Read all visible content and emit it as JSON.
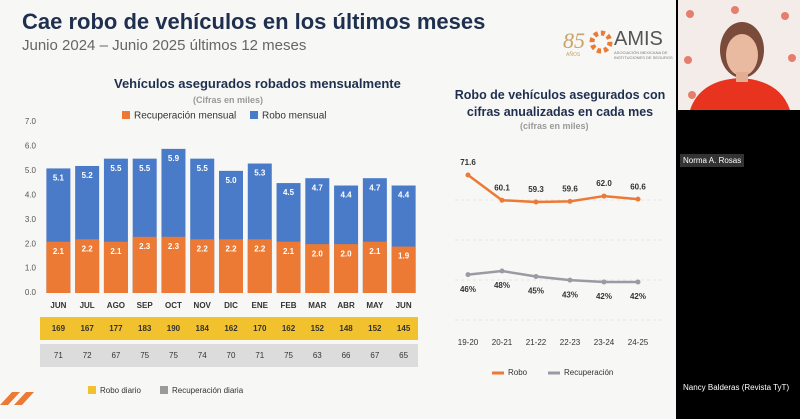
{
  "slide": {
    "title": "Cae robo de vehículos en los últimos meses",
    "subtitle": "Junio 2024 – Junio 2025 últimos 12 meses"
  },
  "logo": {
    "number": "85",
    "years": "AÑOS",
    "name": "AMIS",
    "org": "ASOCIACIÓN MEXICANA DE INSTITUCIONES DE SEGUROS"
  },
  "participants": [
    "Norma A. Rosas",
    "Nancy Balderas (Revista TyT)"
  ],
  "chart_data": [
    {
      "type": "bar",
      "title": "Vehículos asegurados robados mensualmente",
      "subtitle": "(Cifras en miles)",
      "categories": [
        "JUN",
        "JUL",
        "AGO",
        "SEP",
        "OCT",
        "NOV",
        "DIC",
        "ENE",
        "FEB",
        "MAR",
        "ABR",
        "MAY",
        "JUN"
      ],
      "series": [
        {
          "name": "Recuperación mensual",
          "color": "#ec7a35",
          "values": [
            2.1,
            2.2,
            2.1,
            2.3,
            2.3,
            2.2,
            2.2,
            2.2,
            2.1,
            2.0,
            2.0,
            2.1,
            1.9
          ],
          "value_labels": [
            "2.1",
            "2.2",
            "2.1",
            "2.3",
            "2.3",
            "2.2",
            "2.2",
            "2.2",
            "2.1",
            "2.0",
            "2.0",
            "2.1",
            "1.9"
          ]
        },
        {
          "name": "Robo mensual",
          "color": "#4a7bc8",
          "values": [
            5.1,
            5.2,
            5.5,
            5.5,
            5.9,
            5.5,
            5.0,
            5.3,
            4.5,
            4.7,
            4.4,
            4.7,
            4.4
          ],
          "value_labels": [
            "5.1",
            "5.2",
            "5.5",
            "5.5",
            "5.9",
            "5.5",
            "5.0",
            "5.3",
            "4.5",
            "4.7",
            "4.4",
            "4.7",
            "4.4"
          ]
        }
      ],
      "ylim": [
        0,
        7
      ],
      "yticks": [
        {
          "value": 0,
          "label": "0.0"
        },
        {
          "value": 1,
          "label": "1.0"
        },
        {
          "value": 2,
          "label": "2.0"
        },
        {
          "value": 3,
          "label": "3.0"
        },
        {
          "value": 4,
          "label": "4.0"
        },
        {
          "value": 5,
          "label": "5.0"
        },
        {
          "value": 6,
          "label": "6.0"
        },
        {
          "value": 7,
          "label": "7.0"
        }
      ],
      "grid": false,
      "table_rows": [
        {
          "name": "Robo diario",
          "color": "#f2c12e",
          "values": [
            169,
            167,
            177,
            183,
            190,
            184,
            162,
            170,
            162,
            152,
            148,
            152,
            145
          ]
        },
        {
          "name": "Recuperación diaria",
          "color": "#9a9a9a",
          "values": [
            71,
            72,
            67,
            75,
            75,
            74,
            70,
            71,
            75,
            63,
            66,
            67,
            65
          ]
        }
      ]
    },
    {
      "type": "line",
      "title": "Robo de vehículos asegurados con cifras anualizadas en cada mes",
      "subtitle": "(cifras en miles)",
      "categories": [
        "19-20",
        "20-21",
        "21-22",
        "22-23",
        "23-24",
        "24-25"
      ],
      "series": [
        {
          "name": "Robo",
          "color": "#ec7a35",
          "values": [
            71.6,
            60.1,
            59.3,
            59.6,
            62.0,
            60.6
          ],
          "value_labels": [
            "71.6",
            "60.1",
            "59.3",
            "59.6",
            "62.0",
            "60.6"
          ]
        },
        {
          "name": "Recuperación",
          "color": "#9a9aa4",
          "values": [
            46,
            48,
            45,
            43,
            42,
            42
          ],
          "value_labels": [
            "46%",
            "48%",
            "45%",
            "43%",
            "42%",
            "42%"
          ]
        }
      ]
    }
  ]
}
